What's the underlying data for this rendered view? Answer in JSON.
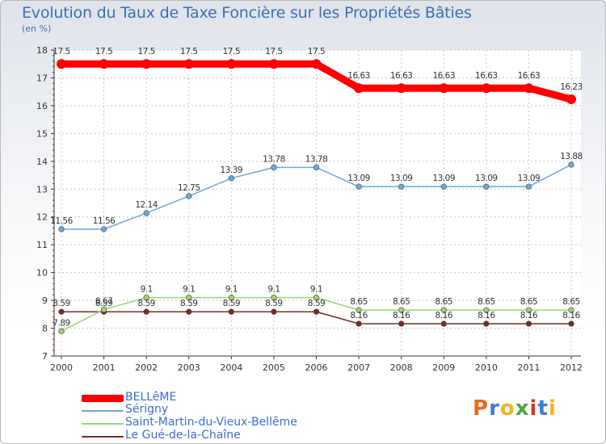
{
  "title": "Evolution du Taux de Taxe Foncière sur les Propriétés Bâties",
  "unit_label": "(en %)",
  "logo": {
    "text": "Proxiti",
    "colors": [
      "#e86b1e",
      "#3b7fd6",
      "#f2b51b",
      "#4aa83b",
      "#d9342b",
      "#3b7fd6",
      "#f2b51b"
    ]
  },
  "chart_data": {
    "type": "line",
    "title": "Evolution du Taux de Taxe Foncière sur les Propriétés Bâties",
    "ylabel": "(en %)",
    "xlabel": "",
    "x": [
      "2000",
      "2001",
      "2002",
      "2003",
      "2004",
      "2005",
      "2006",
      "2007",
      "2008",
      "2009",
      "2010",
      "2011",
      "2012"
    ],
    "ylim": [
      7,
      18
    ],
    "yticks": [
      "7",
      "8",
      "9",
      "10",
      "11",
      "12",
      "13",
      "14",
      "15",
      "16",
      "17",
      "18"
    ],
    "grid": true,
    "series": [
      {
        "name": "BELLêME",
        "color": "#ff0000",
        "values": [
          17.5,
          17.5,
          17.5,
          17.5,
          17.5,
          17.5,
          17.5,
          16.63,
          16.63,
          16.63,
          16.63,
          16.63,
          16.23
        ],
        "labels": [
          "17.5",
          "17.5",
          "17.5",
          "17.5",
          "17.5",
          "17.5",
          "17.5",
          "16.63",
          "16.63",
          "16.63",
          "16.63",
          "16.63",
          "16.23"
        ]
      },
      {
        "name": "Sérigny",
        "color": "#6fa8dc",
        "values": [
          11.56,
          11.56,
          12.14,
          12.75,
          13.39,
          13.78,
          13.78,
          13.09,
          13.09,
          13.09,
          13.09,
          13.09,
          13.88
        ],
        "labels": [
          "11.56",
          "11.56",
          "12.14",
          "12.75",
          "13.39",
          "13.78",
          "13.78",
          "13.09",
          "13.09",
          "13.09",
          "13.09",
          "13.09",
          "13.88"
        ]
      },
      {
        "name": "Saint-Martin-du-Vieux-Bellême",
        "color": "#9ad46f",
        "values": [
          7.89,
          8.67,
          9.1,
          9.1,
          9.1,
          9.1,
          9.1,
          8.65,
          8.65,
          8.65,
          8.65,
          8.65,
          8.65
        ],
        "labels": [
          "7.89",
          "8.67",
          "9.1",
          "9.1",
          "9.1",
          "9.1",
          "9.1",
          "8.65",
          "8.65",
          "8.65",
          "8.65",
          "8.65",
          "8.65"
        ]
      },
      {
        "name": "Le Gué-de-la-Chaîne",
        "color": "#7a2a2a",
        "values": [
          8.59,
          8.59,
          8.59,
          8.59,
          8.59,
          8.59,
          8.59,
          8.16,
          8.16,
          8.16,
          8.16,
          8.16,
          8.16
        ],
        "labels": [
          "8.59",
          "8.59",
          "8.59",
          "8.59",
          "8.59",
          "8.59",
          "8.59",
          "8.16",
          "8.16",
          "8.16",
          "8.16",
          "8.16",
          "8.16"
        ]
      }
    ],
    "legend": [
      "BELLêME",
      "Sérigny",
      "Saint-Martin-du-Vieux-Bellême",
      "Le Gué-de-la-Chaîne"
    ]
  }
}
